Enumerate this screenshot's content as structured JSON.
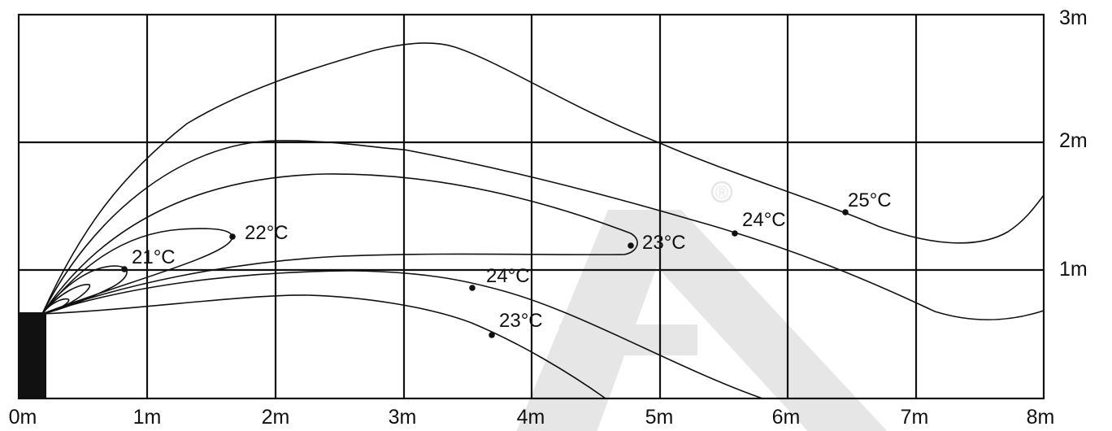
{
  "diagram": {
    "x_axis_labels": [
      "0m",
      "1m",
      "2m",
      "3m",
      "4m",
      "5m",
      "6m",
      "7m",
      "8m"
    ],
    "y_axis_labels": [
      "1m",
      "2m",
      "3m"
    ],
    "temperature_labels": {
      "t21": "21°C",
      "t22": "22°C",
      "t23_upper": "23°C",
      "t24_upper": "24°C",
      "t25": "25°C",
      "t24_lower": "24°C",
      "t23_lower": "23°C"
    },
    "watermark_symbol": "®",
    "colors": {
      "line": "#111111",
      "watermark": "#e6e6e6",
      "background": "#ffffff"
    }
  }
}
